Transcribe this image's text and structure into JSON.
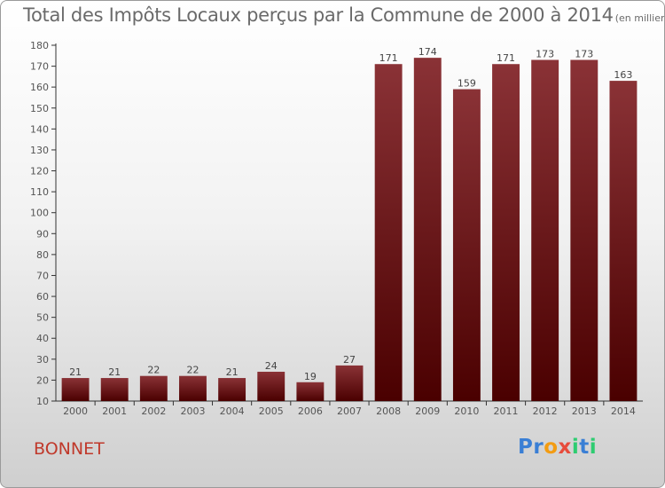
{
  "title": "Total des Impôts Locaux perçus par la Commune de 2000 à 2014",
  "title_unit": "(en milliers d'€)",
  "commune": "BONNET",
  "logo": {
    "letters": [
      "P",
      "r",
      "o",
      "x",
      "i",
      "t",
      "i"
    ],
    "colors": [
      "#3a7fd5",
      "#3a7fd5",
      "#f39c12",
      "#e74c3c",
      "#2ecc71",
      "#3a7fd5",
      "#2ecc71"
    ]
  },
  "colors": {
    "bar_top": "#8a3236",
    "bar_bottom": "#4a0000",
    "accent": "#c0392b"
  },
  "chart_data": {
    "type": "bar",
    "categories": [
      "2000",
      "2001",
      "2002",
      "2003",
      "2004",
      "2005",
      "2006",
      "2007",
      "2008",
      "2009",
      "2010",
      "2011",
      "2012",
      "2013",
      "2014"
    ],
    "values": [
      21,
      21,
      22,
      22,
      21,
      24,
      19,
      27,
      171,
      174,
      159,
      171,
      173,
      173,
      163
    ],
    "ylim": [
      10,
      180
    ],
    "yticks": [
      10,
      20,
      30,
      40,
      50,
      60,
      70,
      80,
      90,
      100,
      110,
      120,
      130,
      140,
      150,
      160,
      170,
      180
    ],
    "grid": false
  }
}
